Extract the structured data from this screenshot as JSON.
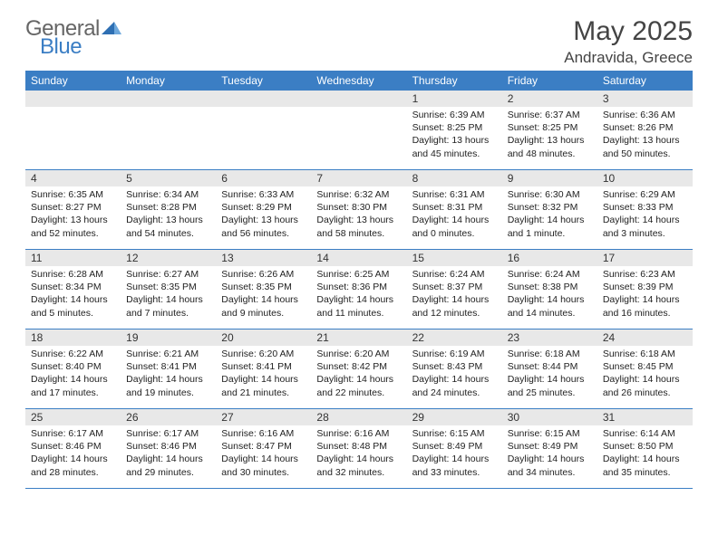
{
  "brand": {
    "part1": "General",
    "part2": "Blue"
  },
  "title": "May 2025",
  "location": "Andravida, Greece",
  "colors": {
    "accent": "#3b7ec4",
    "header_bg": "#3b7ec4",
    "daybar": "#e8e8e8",
    "text": "#222"
  },
  "dow": [
    "Sunday",
    "Monday",
    "Tuesday",
    "Wednesday",
    "Thursday",
    "Friday",
    "Saturday"
  ],
  "weeks": [
    [
      null,
      null,
      null,
      null,
      {
        "n": "1",
        "sr": "6:39 AM",
        "ss": "8:25 PM",
        "dl": "13 hours and 45 minutes."
      },
      {
        "n": "2",
        "sr": "6:37 AM",
        "ss": "8:25 PM",
        "dl": "13 hours and 48 minutes."
      },
      {
        "n": "3",
        "sr": "6:36 AM",
        "ss": "8:26 PM",
        "dl": "13 hours and 50 minutes."
      }
    ],
    [
      {
        "n": "4",
        "sr": "6:35 AM",
        "ss": "8:27 PM",
        "dl": "13 hours and 52 minutes."
      },
      {
        "n": "5",
        "sr": "6:34 AM",
        "ss": "8:28 PM",
        "dl": "13 hours and 54 minutes."
      },
      {
        "n": "6",
        "sr": "6:33 AM",
        "ss": "8:29 PM",
        "dl": "13 hours and 56 minutes."
      },
      {
        "n": "7",
        "sr": "6:32 AM",
        "ss": "8:30 PM",
        "dl": "13 hours and 58 minutes."
      },
      {
        "n": "8",
        "sr": "6:31 AM",
        "ss": "8:31 PM",
        "dl": "14 hours and 0 minutes."
      },
      {
        "n": "9",
        "sr": "6:30 AM",
        "ss": "8:32 PM",
        "dl": "14 hours and 1 minute."
      },
      {
        "n": "10",
        "sr": "6:29 AM",
        "ss": "8:33 PM",
        "dl": "14 hours and 3 minutes."
      }
    ],
    [
      {
        "n": "11",
        "sr": "6:28 AM",
        "ss": "8:34 PM",
        "dl": "14 hours and 5 minutes."
      },
      {
        "n": "12",
        "sr": "6:27 AM",
        "ss": "8:35 PM",
        "dl": "14 hours and 7 minutes."
      },
      {
        "n": "13",
        "sr": "6:26 AM",
        "ss": "8:35 PM",
        "dl": "14 hours and 9 minutes."
      },
      {
        "n": "14",
        "sr": "6:25 AM",
        "ss": "8:36 PM",
        "dl": "14 hours and 11 minutes."
      },
      {
        "n": "15",
        "sr": "6:24 AM",
        "ss": "8:37 PM",
        "dl": "14 hours and 12 minutes."
      },
      {
        "n": "16",
        "sr": "6:24 AM",
        "ss": "8:38 PM",
        "dl": "14 hours and 14 minutes."
      },
      {
        "n": "17",
        "sr": "6:23 AM",
        "ss": "8:39 PM",
        "dl": "14 hours and 16 minutes."
      }
    ],
    [
      {
        "n": "18",
        "sr": "6:22 AM",
        "ss": "8:40 PM",
        "dl": "14 hours and 17 minutes."
      },
      {
        "n": "19",
        "sr": "6:21 AM",
        "ss": "8:41 PM",
        "dl": "14 hours and 19 minutes."
      },
      {
        "n": "20",
        "sr": "6:20 AM",
        "ss": "8:41 PM",
        "dl": "14 hours and 21 minutes."
      },
      {
        "n": "21",
        "sr": "6:20 AM",
        "ss": "8:42 PM",
        "dl": "14 hours and 22 minutes."
      },
      {
        "n": "22",
        "sr": "6:19 AM",
        "ss": "8:43 PM",
        "dl": "14 hours and 24 minutes."
      },
      {
        "n": "23",
        "sr": "6:18 AM",
        "ss": "8:44 PM",
        "dl": "14 hours and 25 minutes."
      },
      {
        "n": "24",
        "sr": "6:18 AM",
        "ss": "8:45 PM",
        "dl": "14 hours and 26 minutes."
      }
    ],
    [
      {
        "n": "25",
        "sr": "6:17 AM",
        "ss": "8:46 PM",
        "dl": "14 hours and 28 minutes."
      },
      {
        "n": "26",
        "sr": "6:17 AM",
        "ss": "8:46 PM",
        "dl": "14 hours and 29 minutes."
      },
      {
        "n": "27",
        "sr": "6:16 AM",
        "ss": "8:47 PM",
        "dl": "14 hours and 30 minutes."
      },
      {
        "n": "28",
        "sr": "6:16 AM",
        "ss": "8:48 PM",
        "dl": "14 hours and 32 minutes."
      },
      {
        "n": "29",
        "sr": "6:15 AM",
        "ss": "8:49 PM",
        "dl": "14 hours and 33 minutes."
      },
      {
        "n": "30",
        "sr": "6:15 AM",
        "ss": "8:49 PM",
        "dl": "14 hours and 34 minutes."
      },
      {
        "n": "31",
        "sr": "6:14 AM",
        "ss": "8:50 PM",
        "dl": "14 hours and 35 minutes."
      }
    ]
  ],
  "labels": {
    "sunrise": "Sunrise: ",
    "sunset": "Sunset: ",
    "daylight": "Daylight: "
  }
}
